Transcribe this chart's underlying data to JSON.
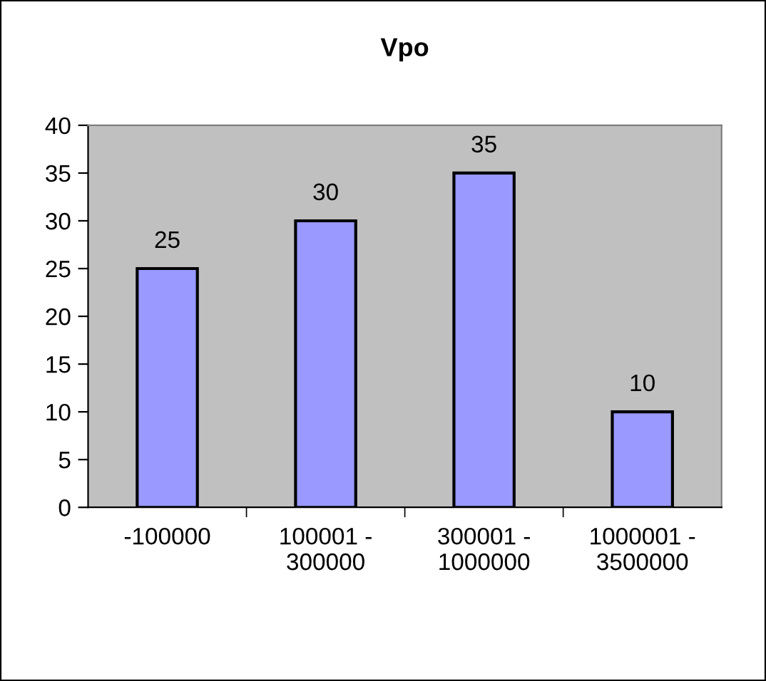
{
  "chart_data": {
    "type": "bar",
    "title": "Vpo",
    "categories": [
      "-100000",
      "100001 -\n300000",
      "300001 -\n1000000",
      "1000001 -\n3500000"
    ],
    "values": [
      25,
      30,
      35,
      10
    ],
    "color": "#9999ff",
    "ylim": [
      0,
      40
    ],
    "yticks": [
      0,
      5,
      10,
      15,
      20,
      25,
      30,
      35,
      40
    ],
    "data_labels": true,
    "grid": false,
    "legend": false
  }
}
